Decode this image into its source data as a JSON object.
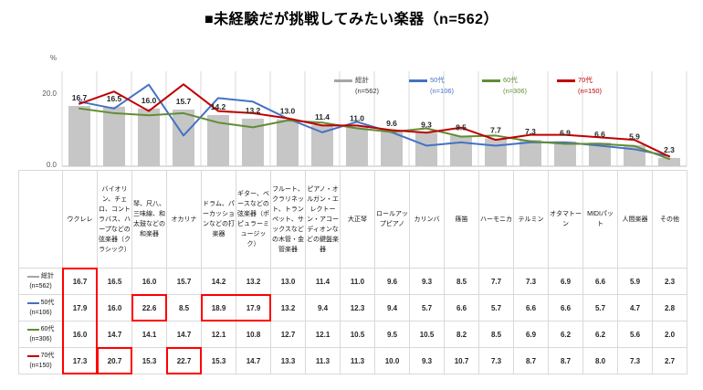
{
  "title": "■未経験だが挑戦してみたい楽器（n=562）",
  "y_axis": {
    "unit_label": "%",
    "tick_labels": [
      "20.0",
      "0.0"
    ]
  },
  "chart_data": {
    "type": "bar+line",
    "title": "■未経験だが挑戦してみたい楽器（n=562）",
    "ylabel": "%",
    "ylim": [
      0,
      26.3
    ],
    "gridlines": "vertical-only",
    "legend_position": "inside-top",
    "bar_value_labels": true,
    "categories": [
      "ウクレレ",
      "バイオリン、チェロ、コントラバス、ハープなどの弦楽器（クラシック）",
      "琴、尺八、三味線、和太鼓などの和楽器",
      "オカリナ",
      "ドラム、パーカッションなどの打楽器",
      "ギター、ベースなどの弦楽器（ポピュラーミュージック）",
      "フルート、クラリネット、トランペット、サックスなどの木管・金管楽器",
      "ピアノ・オルガン・エレクトーン・アコーディオンなどの鍵盤楽器",
      "大正琴",
      "ロールアップピアノ",
      "カリンバ",
      "篠笛",
      "ハーモニカ",
      "テルミン",
      "オタマトーン",
      "MIDIパット",
      "人間楽器",
      "その他"
    ],
    "series": [
      {
        "key": "total",
        "name": "総計",
        "n_label": "(n=562)",
        "type": "bar",
        "color": "#c6c6c6",
        "swatch_color": "#a6a6a6",
        "text_color": "#333333",
        "values": [
          16.7,
          16.5,
          16.0,
          15.7,
          14.2,
          13.2,
          13.0,
          11.4,
          11.0,
          9.6,
          9.3,
          8.5,
          7.7,
          7.3,
          6.9,
          6.6,
          5.9,
          2.3
        ]
      },
      {
        "key": "50s",
        "name": "50代",
        "n_label": "(n=106)",
        "type": "line",
        "color": "#4472c4",
        "swatch_color": "#4472c4",
        "text_color": "#4472c4",
        "values": [
          17.9,
          16.0,
          22.6,
          8.5,
          18.9,
          17.9,
          13.2,
          9.4,
          12.3,
          9.4,
          5.7,
          6.6,
          5.7,
          6.6,
          6.6,
          5.7,
          4.7,
          2.8
        ]
      },
      {
        "key": "60s",
        "name": "60代",
        "n_label": "(n=306)",
        "type": "line",
        "color": "#628d36",
        "swatch_color": "#628d36",
        "text_color": "#628d36",
        "values": [
          16.0,
          14.7,
          14.1,
          14.7,
          12.1,
          10.8,
          12.7,
          12.1,
          10.5,
          9.5,
          10.5,
          8.2,
          8.5,
          6.9,
          6.2,
          6.2,
          5.6,
          2.0
        ]
      },
      {
        "key": "70s",
        "name": "70代",
        "n_label": "(n=150)",
        "type": "line",
        "color": "#c00000",
        "swatch_color": "#c00000",
        "text_color": "#c00000",
        "values": [
          17.3,
          20.7,
          15.3,
          22.7,
          15.3,
          14.7,
          13.3,
          11.3,
          11.3,
          10.0,
          9.3,
          10.7,
          7.3,
          8.7,
          8.7,
          8.0,
          7.3,
          2.7
        ]
      }
    ]
  },
  "table": {
    "highlight_color": "#ff0000",
    "highlights": [
      {
        "rows": [
          0,
          3
        ],
        "cols": [
          0,
          0
        ]
      },
      {
        "rows": [
          3,
          3
        ],
        "cols": [
          1,
          1
        ]
      },
      {
        "rows": [
          1,
          1
        ],
        "cols": [
          2,
          2
        ]
      },
      {
        "rows": [
          3,
          3
        ],
        "cols": [
          3,
          3
        ]
      },
      {
        "rows": [
          1,
          1
        ],
        "cols": [
          4,
          5
        ]
      }
    ]
  }
}
